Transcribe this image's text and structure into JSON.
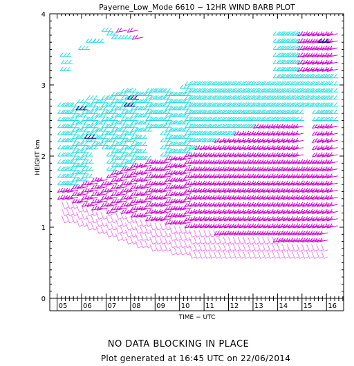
{
  "chart_data": {
    "type": "scatter",
    "title": "Payerne_Low_Mode 6610 − 12HR WIND BARB PLOT",
    "xlabel": "TIME − UTC",
    "ylabel": "HEIGHT km",
    "xlim": [
      4.7,
      16.7
    ],
    "ylim": [
      0,
      4
    ],
    "x_tick_labels": [
      "05",
      "06",
      "07",
      "08",
      "09",
      "10",
      "11",
      "12",
      "13",
      "14",
      "15",
      "16"
    ],
    "y_tick_labels": [
      "0",
      "1",
      "2",
      "3",
      "4"
    ],
    "speed_color_scale": [
      {
        "class": "light",
        "color": "#ee82ee"
      },
      {
        "class": "moderate",
        "color": "#cc00cc"
      },
      {
        "class": "strong",
        "color": "#22dddd"
      },
      {
        "class": "very-strong",
        "color": "#000080"
      }
    ],
    "time_steps": [
      5.25,
      5.45,
      5.65,
      5.85,
      6.05,
      6.25,
      6.45,
      6.65,
      6.85,
      7.05,
      7.25,
      7.45,
      7.65,
      7.85,
      8.05,
      8.25,
      8.45,
      8.65,
      8.85,
      9.05,
      9.25,
      9.45,
      9.65,
      9.85,
      10.05,
      10.25,
      10.45,
      10.65,
      10.85,
      11.05,
      11.25,
      11.45,
      11.65,
      11.85,
      12.05,
      12.25,
      12.45,
      12.65,
      12.85,
      13.05,
      13.25,
      13.45,
      13.65,
      13.85,
      14.05,
      14.25,
      14.45,
      14.65,
      14.85,
      15.05,
      15.25,
      15.45,
      15.65,
      15.85,
      16.05,
      16.25
    ],
    "height_step_km": 0.1,
    "profile_top_km": [
      2.7,
      2.7,
      2.7,
      2.7,
      2.75,
      2.75,
      2.8,
      2.8,
      2.8,
      2.85,
      2.85,
      2.85,
      2.85,
      2.9,
      2.9,
      2.9,
      2.9,
      2.9,
      2.9,
      2.95,
      2.95,
      2.95,
      2.95,
      2.95,
      2.95,
      2.95,
      3.0,
      3.0,
      3.0,
      3.0,
      3.0,
      3.0,
      3.0,
      3.0,
      3.0,
      3.0,
      3.0,
      3.0,
      3.0,
      3.0,
      3.0,
      3.0,
      3.0,
      3.0,
      3.7,
      3.7,
      3.7,
      3.7,
      3.7,
      3.7,
      3.7,
      3.7,
      3.7,
      3.7,
      3.7,
      3.7
    ],
    "profile_bottom_km": [
      1.1,
      1.1,
      1.1,
      1.05,
      1.05,
      1.0,
      1.0,
      0.95,
      0.95,
      0.9,
      0.9,
      0.85,
      0.85,
      0.8,
      0.8,
      0.75,
      0.75,
      0.75,
      0.7,
      0.7,
      0.7,
      0.7,
      0.65,
      0.65,
      0.65,
      0.65,
      0.6,
      0.6,
      0.6,
      0.6,
      0.6,
      0.6,
      0.6,
      0.6,
      0.6,
      0.6,
      0.6,
      0.6,
      0.6,
      0.6,
      0.6,
      0.6,
      0.6,
      0.6,
      0.6,
      0.6,
      0.6,
      0.6,
      0.6,
      0.6,
      0.6,
      0.6,
      0.6,
      0.6,
      0.6,
      0.6
    ],
    "light_below_km": [
      1.4,
      1.4,
      1.4,
      1.35,
      1.35,
      1.3,
      1.3,
      1.25,
      1.25,
      1.25,
      1.2,
      1.2,
      1.2,
      1.15,
      1.15,
      1.15,
      1.1,
      1.1,
      1.1,
      1.1,
      1.05,
      1.05,
      1.05,
      1.05,
      1.0,
      1.0,
      1.0,
      1.0,
      0.95,
      0.95,
      0.95,
      0.95,
      0.9,
      0.9,
      0.9,
      0.9,
      0.9,
      0.9,
      0.85,
      0.85,
      0.85,
      0.85,
      0.85,
      0.85,
      0.8,
      0.8,
      0.8,
      0.8,
      0.8,
      0.8,
      0.8,
      0.8,
      0.8,
      0.8,
      0.8,
      0.8
    ],
    "moderate_below_km": [
      1.6,
      1.6,
      1.6,
      1.6,
      1.65,
      1.7,
      1.7,
      1.75,
      1.75,
      1.8,
      1.8,
      1.8,
      1.85,
      1.85,
      1.85,
      1.9,
      1.9,
      1.9,
      1.95,
      1.95,
      1.95,
      2.0,
      2.0,
      2.0,
      2.05,
      2.05,
      2.1,
      2.1,
      2.15,
      2.15,
      2.2,
      2.2,
      2.25,
      2.25,
      2.3,
      2.3,
      2.35,
      2.35,
      2.4,
      2.4,
      2.45,
      2.45,
      2.5,
      2.5,
      2.5,
      2.5,
      2.5,
      2.5,
      2.5,
      2.5,
      2.5,
      2.5,
      2.5,
      2.5,
      2.5,
      2.5
    ],
    "upper_moderate_band_km": [
      3.2,
      3.7
    ],
    "upper_moderate_band_times": [
      15.0,
      16.25
    ],
    "very_strong_barbs": [
      {
        "x": 6.0,
        "y": 2.65
      },
      {
        "x": 6.35,
        "y": 2.25
      },
      {
        "x": 7.95,
        "y": 2.7
      },
      {
        "x": 8.1,
        "y": 2.8
      },
      {
        "x": 15.9,
        "y": 3.6
      }
    ],
    "gaps": [
      {
        "x": [
          5.25,
          5.65
        ],
        "y": [
          2.8,
          3.1
        ]
      },
      {
        "x": [
          6.45,
          7.05
        ],
        "y": [
          1.7,
          2.05
        ]
      },
      {
        "x": [
          8.5,
          9.3
        ],
        "y": [
          2.0,
          2.3
        ]
      },
      {
        "x": [
          9.05,
          14.0
        ],
        "y": [
          3.1,
          4.0
        ]
      },
      {
        "x": [
          15.05,
          15.5
        ],
        "y": [
          2.0,
          2.6
        ]
      },
      {
        "x": [
          15.9,
          16.3
        ],
        "y": [
          0.6,
          0.9
        ]
      },
      {
        "x": [
          8.9,
          10.2
        ],
        "y": [
          2.95,
          3.1
        ]
      }
    ],
    "isolated_barbs": [
      {
        "x": 5.35,
        "y": 3.4,
        "speed": "strong"
      },
      {
        "x": 5.4,
        "y": 3.3,
        "speed": "strong"
      },
      {
        "x": 5.35,
        "y": 3.2,
        "speed": "strong"
      },
      {
        "x": 6.1,
        "y": 3.5,
        "speed": "strong"
      },
      {
        "x": 6.4,
        "y": 3.6,
        "speed": "strong"
      },
      {
        "x": 6.7,
        "y": 3.6,
        "speed": "strong"
      },
      {
        "x": 7.05,
        "y": 3.75,
        "speed": "strong"
      },
      {
        "x": 7.25,
        "y": 3.7,
        "speed": "strong"
      },
      {
        "x": 7.45,
        "y": 3.65,
        "speed": "strong"
      },
      {
        "x": 7.65,
        "y": 3.75,
        "speed": "moderate"
      },
      {
        "x": 7.85,
        "y": 3.65,
        "speed": "strong"
      },
      {
        "x": 8.1,
        "y": 3.75,
        "speed": "moderate"
      },
      {
        "x": 8.3,
        "y": 3.65,
        "speed": "moderate"
      }
    ],
    "grid": false,
    "legend": "none"
  },
  "footer": {
    "status": "NO DATA BLOCKING IN PLACE",
    "generated": "Plot generated at 16:45 UTC on 22/06/2014"
  }
}
